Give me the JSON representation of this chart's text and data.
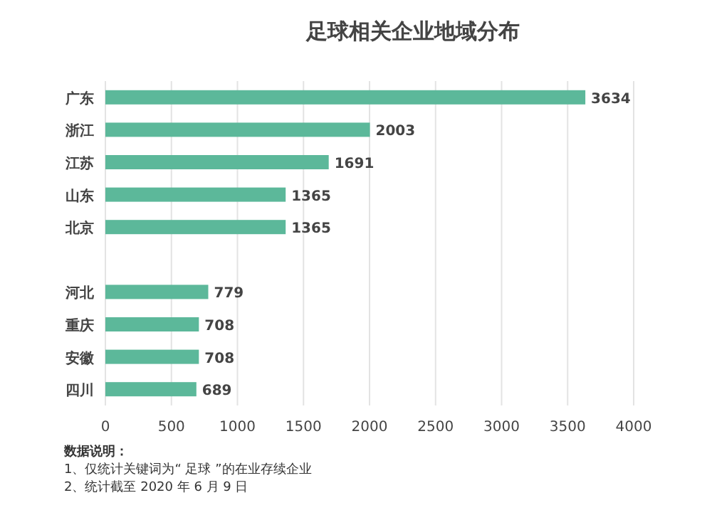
{
  "chart_data": {
    "type": "bar",
    "orientation": "horizontal",
    "title": "足球相关企业地域分布",
    "categories": [
      "广东",
      "浙江",
      "江苏",
      "山东",
      "北京",
      null,
      "河北",
      "重庆",
      "安徽",
      "四川"
    ],
    "values": [
      3634,
      2003,
      1691,
      1365,
      1365,
      null,
      779,
      708,
      708,
      689
    ],
    "color": "#5cb89a",
    "data_labels": true,
    "grid": "x",
    "xlim": [
      0,
      4000
    ],
    "xticks": [
      0,
      500,
      1000,
      1500,
      2000,
      2500,
      3000,
      3500,
      4000
    ],
    "annotations": [
      "数据说明：",
      "1、仅统计关键词为“ 足球 ”的在业存续企业",
      "2、统计截至 2020 年 6 月 9 日"
    ]
  }
}
